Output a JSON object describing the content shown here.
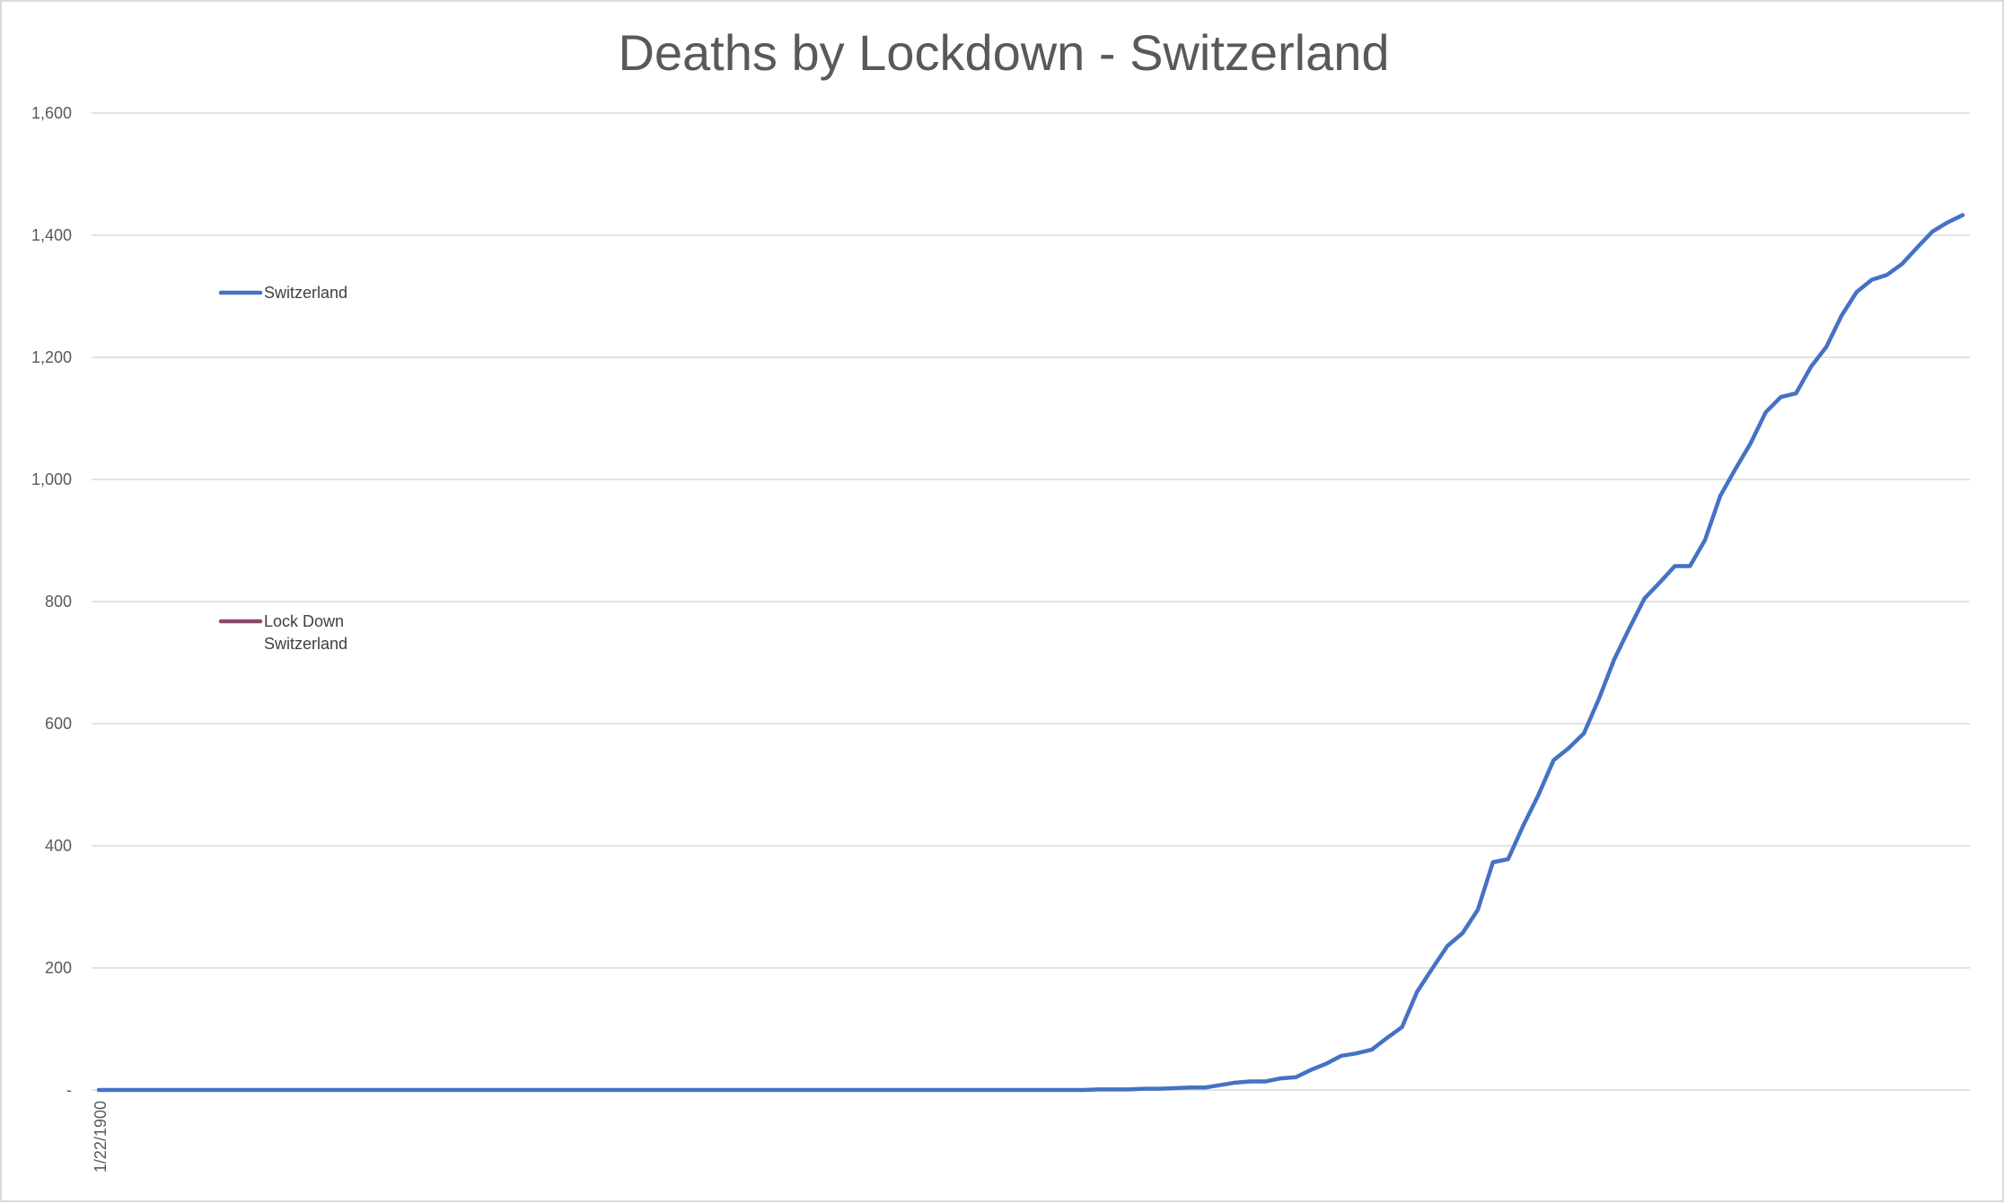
{
  "chart_data": {
    "type": "line",
    "title": "Deaths by Lockdown - Switzerland",
    "xlabel": "",
    "ylabel": "",
    "ylim": [
      0,
      1600
    ],
    "y_ticks": [
      {
        "value": 0,
        "label": "-"
      },
      {
        "value": 200,
        "label": "200"
      },
      {
        "value": 400,
        "label": "400"
      },
      {
        "value": 600,
        "label": "600"
      },
      {
        "value": 800,
        "label": "800"
      },
      {
        "value": 1000,
        "label": "1,000"
      },
      {
        "value": 1200,
        "label": "1,200"
      },
      {
        "value": 1400,
        "label": "1,400"
      },
      {
        "value": 1600,
        "label": "1,600"
      }
    ],
    "x_tick_labels": [
      "1/22/1900"
    ],
    "grid": true,
    "legend_position": "left",
    "series": [
      {
        "name": "Switzerland",
        "color": "#4472c4",
        "values": [
          0,
          0,
          0,
          0,
          0,
          0,
          0,
          0,
          0,
          0,
          0,
          0,
          0,
          0,
          0,
          0,
          0,
          0,
          0,
          0,
          0,
          0,
          0,
          0,
          0,
          0,
          0,
          0,
          0,
          0,
          0,
          0,
          0,
          0,
          0,
          0,
          0,
          0,
          0,
          0,
          0,
          0,
          0,
          0,
          0,
          0,
          0,
          0,
          0,
          0,
          0,
          0,
          0,
          0,
          0,
          0,
          0,
          0,
          0,
          0,
          0,
          0,
          0,
          0,
          0,
          0,
          1,
          1,
          1,
          2,
          2,
          3,
          4,
          4,
          8,
          12,
          14,
          14,
          19,
          21,
          33,
          43,
          56,
          60,
          66,
          85,
          103,
          161,
          199,
          236,
          257,
          295,
          373,
          378,
          433,
          483,
          540,
          560,
          584,
          641,
          705,
          756,
          805,
          831,
          858,
          858,
          901,
          973,
          1017,
          1059,
          1110,
          1135,
          1141,
          1185,
          1217,
          1268,
          1307,
          1327,
          1335,
          1353,
          1380,
          1406,
          1421,
          1433
        ]
      },
      {
        "name": "Lock Down Switzerland",
        "color": "#8b4a6b",
        "values": []
      }
    ]
  }
}
